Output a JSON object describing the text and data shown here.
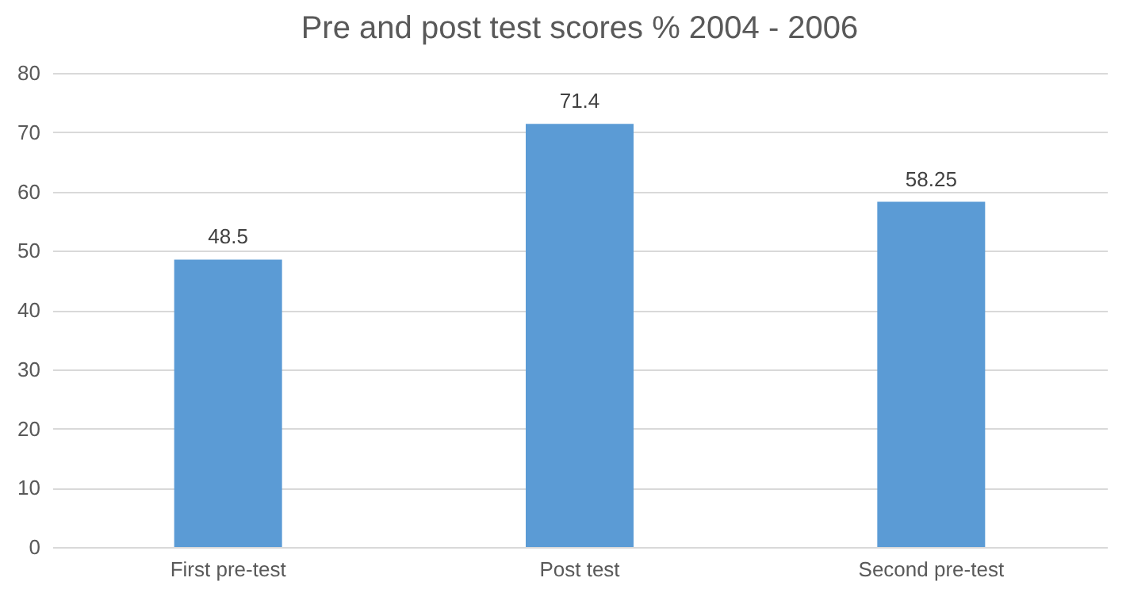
{
  "chart_data": {
    "type": "bar",
    "title": "Pre and post test scores % 2004 - 2006",
    "categories": [
      "First pre-test",
      "Post test",
      "Second pre-test"
    ],
    "values": [
      48.5,
      71.4,
      58.25
    ],
    "color": "#5b9bd5",
    "ylim": [
      0,
      80
    ],
    "yticks": [
      0,
      10,
      20,
      30,
      40,
      50,
      60,
      70,
      80
    ],
    "grid": "y",
    "data_labels": true
  }
}
